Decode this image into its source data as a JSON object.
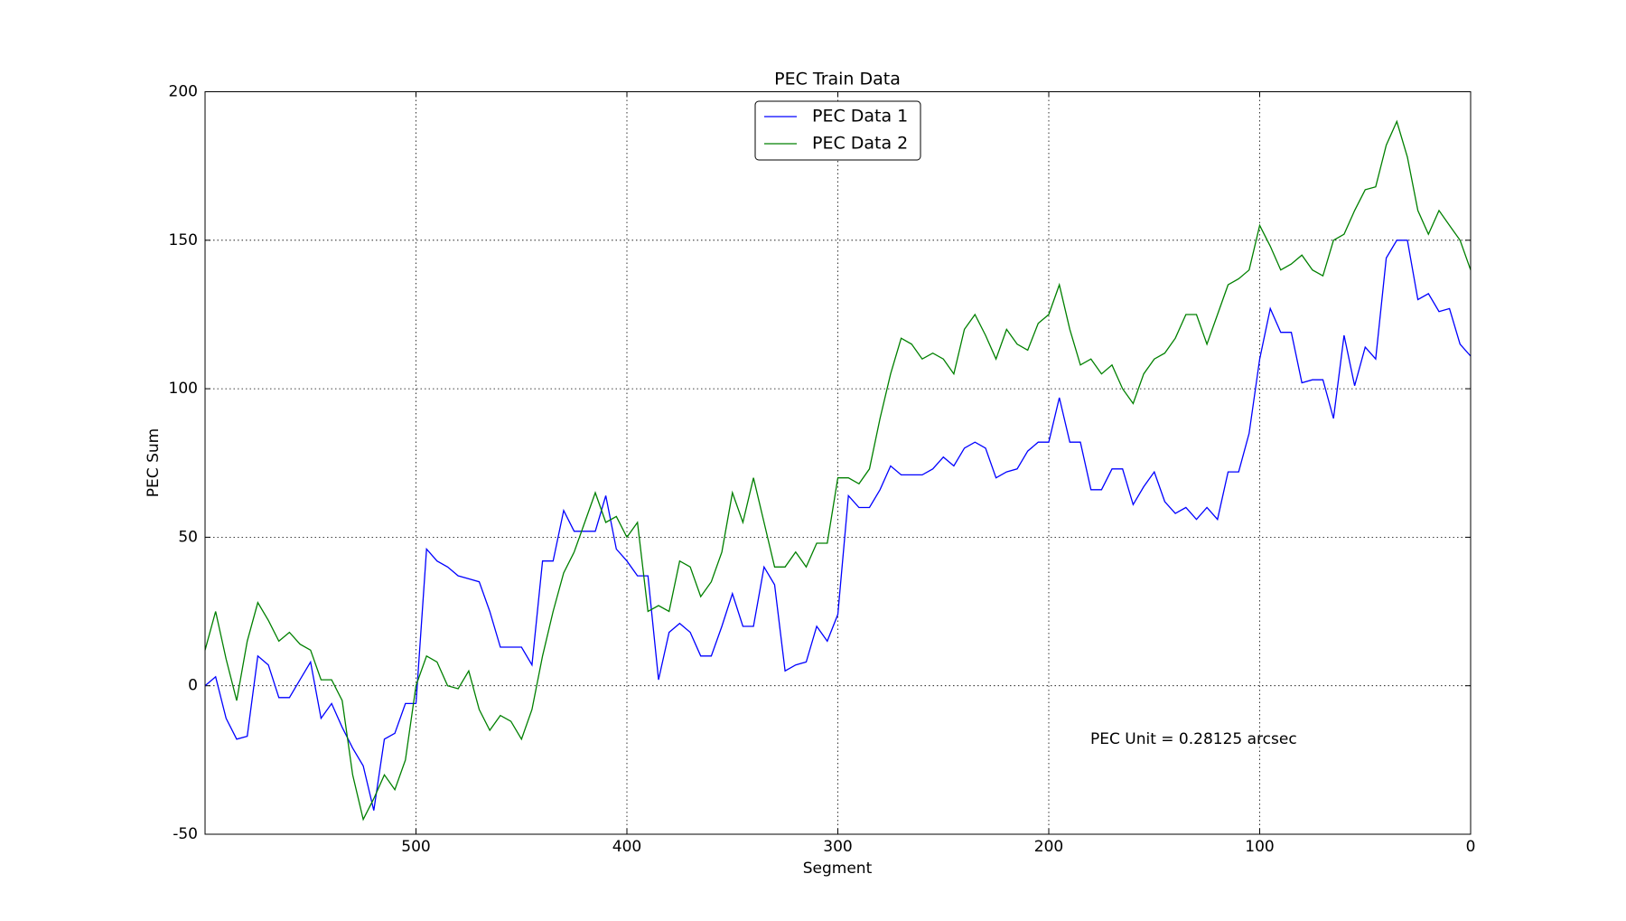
{
  "chart_data": {
    "type": "line",
    "title": "PEC Train Data",
    "x_label": "Segment",
    "y_label": "PEC Sum",
    "annotation": "PEC Unit = 0.28125 arcsec",
    "x": [
      600,
      595,
      590,
      585,
      580,
      575,
      570,
      565,
      560,
      555,
      550,
      545,
      540,
      535,
      530,
      525,
      520,
      515,
      510,
      505,
      500,
      495,
      490,
      485,
      480,
      475,
      470,
      465,
      460,
      455,
      450,
      445,
      440,
      435,
      430,
      425,
      420,
      415,
      410,
      405,
      400,
      395,
      390,
      385,
      380,
      375,
      370,
      365,
      360,
      355,
      350,
      345,
      340,
      335,
      330,
      325,
      320,
      315,
      310,
      305,
      300,
      295,
      290,
      285,
      280,
      275,
      270,
      265,
      260,
      255,
      250,
      245,
      240,
      235,
      230,
      225,
      220,
      215,
      210,
      205,
      200,
      195,
      190,
      185,
      180,
      175,
      170,
      165,
      160,
      155,
      150,
      145,
      140,
      135,
      130,
      125,
      120,
      115,
      110,
      105,
      100,
      95,
      90,
      85,
      80,
      75,
      70,
      65,
      60,
      55,
      50,
      45,
      40,
      35,
      30,
      25,
      20,
      15,
      10,
      5,
      0
    ],
    "series": [
      {
        "name": "PEC Data 1",
        "color": "#0000ff",
        "values": [
          0,
          3,
          -11,
          -18,
          -17,
          10,
          7,
          -4,
          -4,
          2,
          8,
          -11,
          -6,
          -14,
          -21,
          -27,
          -42,
          -18,
          -16,
          -6,
          -6,
          46,
          42,
          40,
          37,
          36,
          35,
          25,
          13,
          13,
          13,
          7,
          42,
          42,
          59,
          52,
          52,
          52,
          64,
          46,
          42,
          37,
          37,
          2,
          18,
          21,
          18,
          10,
          10,
          20,
          31,
          20,
          20,
          40,
          34,
          5,
          7,
          8,
          20,
          15,
          24,
          64,
          60,
          60,
          66,
          74,
          71,
          71,
          71,
          73,
          77,
          74,
          80,
          82,
          80,
          70,
          72,
          73,
          79,
          82,
          82,
          97,
          82,
          82,
          66,
          66,
          73,
          73,
          61,
          67,
          72,
          62,
          58,
          60,
          56,
          60,
          56,
          72,
          72,
          85,
          110,
          127,
          119,
          119,
          102,
          103,
          103,
          90,
          118,
          101,
          114,
          110,
          144,
          150,
          150,
          130,
          132,
          126,
          127,
          115,
          111
        ]
      },
      {
        "name": "PEC Data 2",
        "color": "#008000",
        "values": [
          12,
          25,
          9,
          -5,
          15,
          28,
          22,
          15,
          18,
          14,
          12,
          2,
          2,
          -5,
          -30,
          -45,
          -38,
          -30,
          -35,
          -25,
          0,
          10,
          8,
          0,
          -1,
          5,
          -8,
          -15,
          -10,
          -12,
          -18,
          -8,
          10,
          25,
          38,
          45,
          55,
          65,
          55,
          57,
          50,
          55,
          25,
          27,
          25,
          42,
          40,
          30,
          35,
          45,
          65,
          55,
          70,
          55,
          40,
          40,
          45,
          40,
          48,
          48,
          70,
          70,
          68,
          73,
          90,
          105,
          117,
          115,
          110,
          112,
          110,
          105,
          120,
          125,
          118,
          110,
          120,
          115,
          113,
          122,
          125,
          135,
          120,
          108,
          110,
          105,
          108,
          100,
          95,
          105,
          110,
          112,
          117,
          125,
          125,
          115,
          125,
          135,
          137,
          140,
          155,
          148,
          140,
          142,
          145,
          140,
          138,
          150,
          152,
          160,
          167,
          168,
          182,
          190,
          178,
          160,
          152,
          160,
          155,
          150,
          140
        ]
      }
    ],
    "xlim": [
      600,
      0
    ],
    "ylim": [
      -50,
      200
    ],
    "xticks": [
      500,
      400,
      300,
      200,
      100,
      0
    ],
    "yticks": [
      -50,
      0,
      50,
      100,
      150,
      200
    ],
    "grid": true,
    "legend": "upper center"
  }
}
